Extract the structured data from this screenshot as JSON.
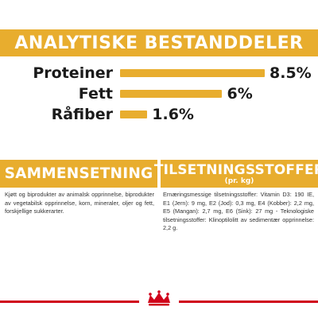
{
  "analysis": {
    "title": "ANALYTISKE BESTANDDELER",
    "rows": [
      {
        "label": "Proteiner",
        "value": "8.5%",
        "level": 8.5
      },
      {
        "label": "Fett",
        "value": "6%",
        "level": 6
      },
      {
        "label": "Råfiber",
        "value": "1.6%",
        "level": 1.6
      }
    ]
  },
  "composition": {
    "title": "SAMMENSETNING",
    "text": "Kjøtt og biprodukter av animalsk opprinnelse, biprodukter av vegetabilsk opprinnelse, korn, mineraler, oljer og fett, forskjellige sukkerarter."
  },
  "additives": {
    "title": "TILSETNINGSSTOFFER",
    "subtitle": "(pr. kg)",
    "text": "Ernæringsmessige tilsetningsstoffer: Vitamin D3: 190 IE, E1 (Jern): 9 mg, E2 (Jod): 0,3 mg, E4 (Kobber): 2,2 mg, E5 (Mangan): 2,7 mg, E6 (Sink): 27 mg - Teknologiske tilsetningsstoffer: Klinoptilolitt av sedimentær opprinnelse: 2,2 g."
  },
  "colors": {
    "accent": "#e8ad2e",
    "brand_red": "#d0021b"
  },
  "footer": {
    "logo": "crown-logo-icon"
  }
}
